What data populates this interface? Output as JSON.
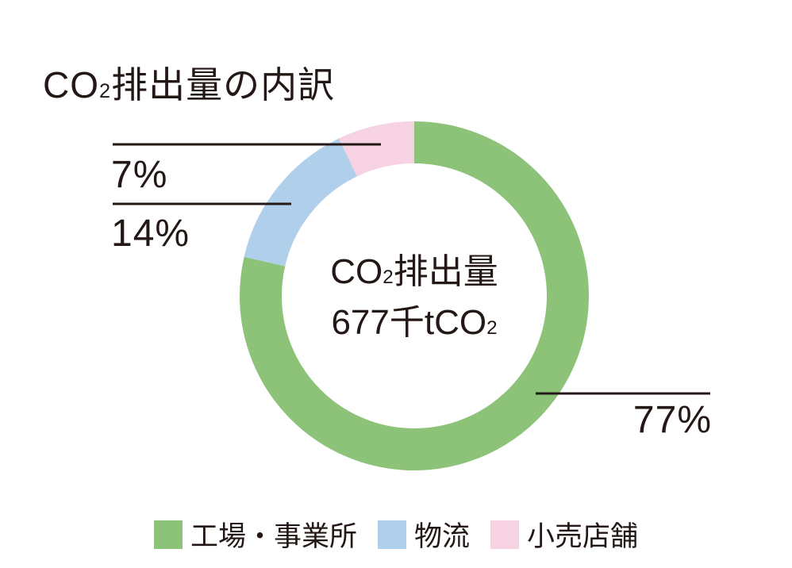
{
  "title": {
    "pre": "CO",
    "sub": "2",
    "post": "排出量の内訳"
  },
  "donut_center": {
    "line1": {
      "pre": "CO",
      "sub": "2",
      "post": "排出量"
    },
    "line2": {
      "pre": "677千tCO",
      "sub": "2",
      "post": ""
    }
  },
  "colors": {
    "text": "#231815",
    "background": "#ffffff"
  },
  "legend": {
    "items": [
      {
        "id": "factories",
        "label": "工場・事業所",
        "color": "#8dc378"
      },
      {
        "id": "logistics",
        "label": "物流",
        "color": "#b0cfeb"
      },
      {
        "id": "retail",
        "label": "小売店舗",
        "color": "#f6d2e2"
      }
    ]
  },
  "chart_data": {
    "type": "pie",
    "variant": "donut",
    "title": "CO2排出量の内訳",
    "categories": [
      "工場・事業所",
      "物流",
      "小売店舗"
    ],
    "values": [
      77,
      14,
      7
    ],
    "unit": "%",
    "pct_labels": [
      "77%",
      "14%",
      "7%"
    ],
    "colors": [
      "#8dc378",
      "#b0cfeb",
      "#f6d2e2"
    ],
    "segment_names": [
      "factories",
      "logistics",
      "retail"
    ],
    "center_label_line1": "CO2排出量",
    "center_label_line2": "677千tCO2",
    "start_angle": "top",
    "direction": "clockwise",
    "inner_radius_ratio": 0.76,
    "legend_position": "bottom"
  }
}
